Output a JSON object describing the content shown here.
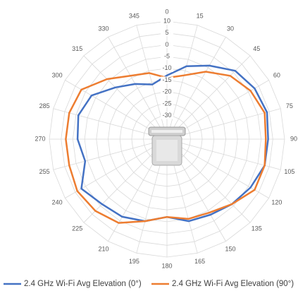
{
  "chart_data": {
    "type": "radar",
    "categories": [
      "0",
      "15",
      "30",
      "45",
      "60",
      "75",
      "90",
      "105",
      "120",
      "135",
      "150",
      "165",
      "180",
      "195",
      "210",
      "225",
      "240",
      "255",
      "270",
      "285",
      "300",
      "315",
      "330",
      "345"
    ],
    "ylim": [
      -40,
      10
    ],
    "yticks": [
      -30,
      -25,
      -20,
      -15,
      -10,
      -5,
      0,
      5,
      10
    ],
    "grid": true,
    "series": [
      {
        "name": "2.4 GHz Wi-Fi Avg Elevation (0°)",
        "color": "#4472c4",
        "values": [
          -13,
          -8,
          -4,
          1,
          3,
          4,
          3,
          3,
          1,
          -1,
          -3,
          -4,
          -7,
          -4,
          -2,
          -1,
          2,
          -4,
          -2,
          -1,
          -3,
          -9,
          -13,
          -16
        ]
      },
      {
        "name": "2.4 GHz Wi-Fi Avg Elevation (90°)",
        "color": "#ed7d31",
        "values": [
          -14,
          -12,
          -7,
          -2,
          1,
          3,
          2,
          3,
          3,
          -1,
          -4,
          -5,
          -7,
          -4,
          1,
          3,
          4,
          3,
          3,
          3,
          2,
          -4,
          -9,
          -11
        ]
      }
    ]
  }
}
